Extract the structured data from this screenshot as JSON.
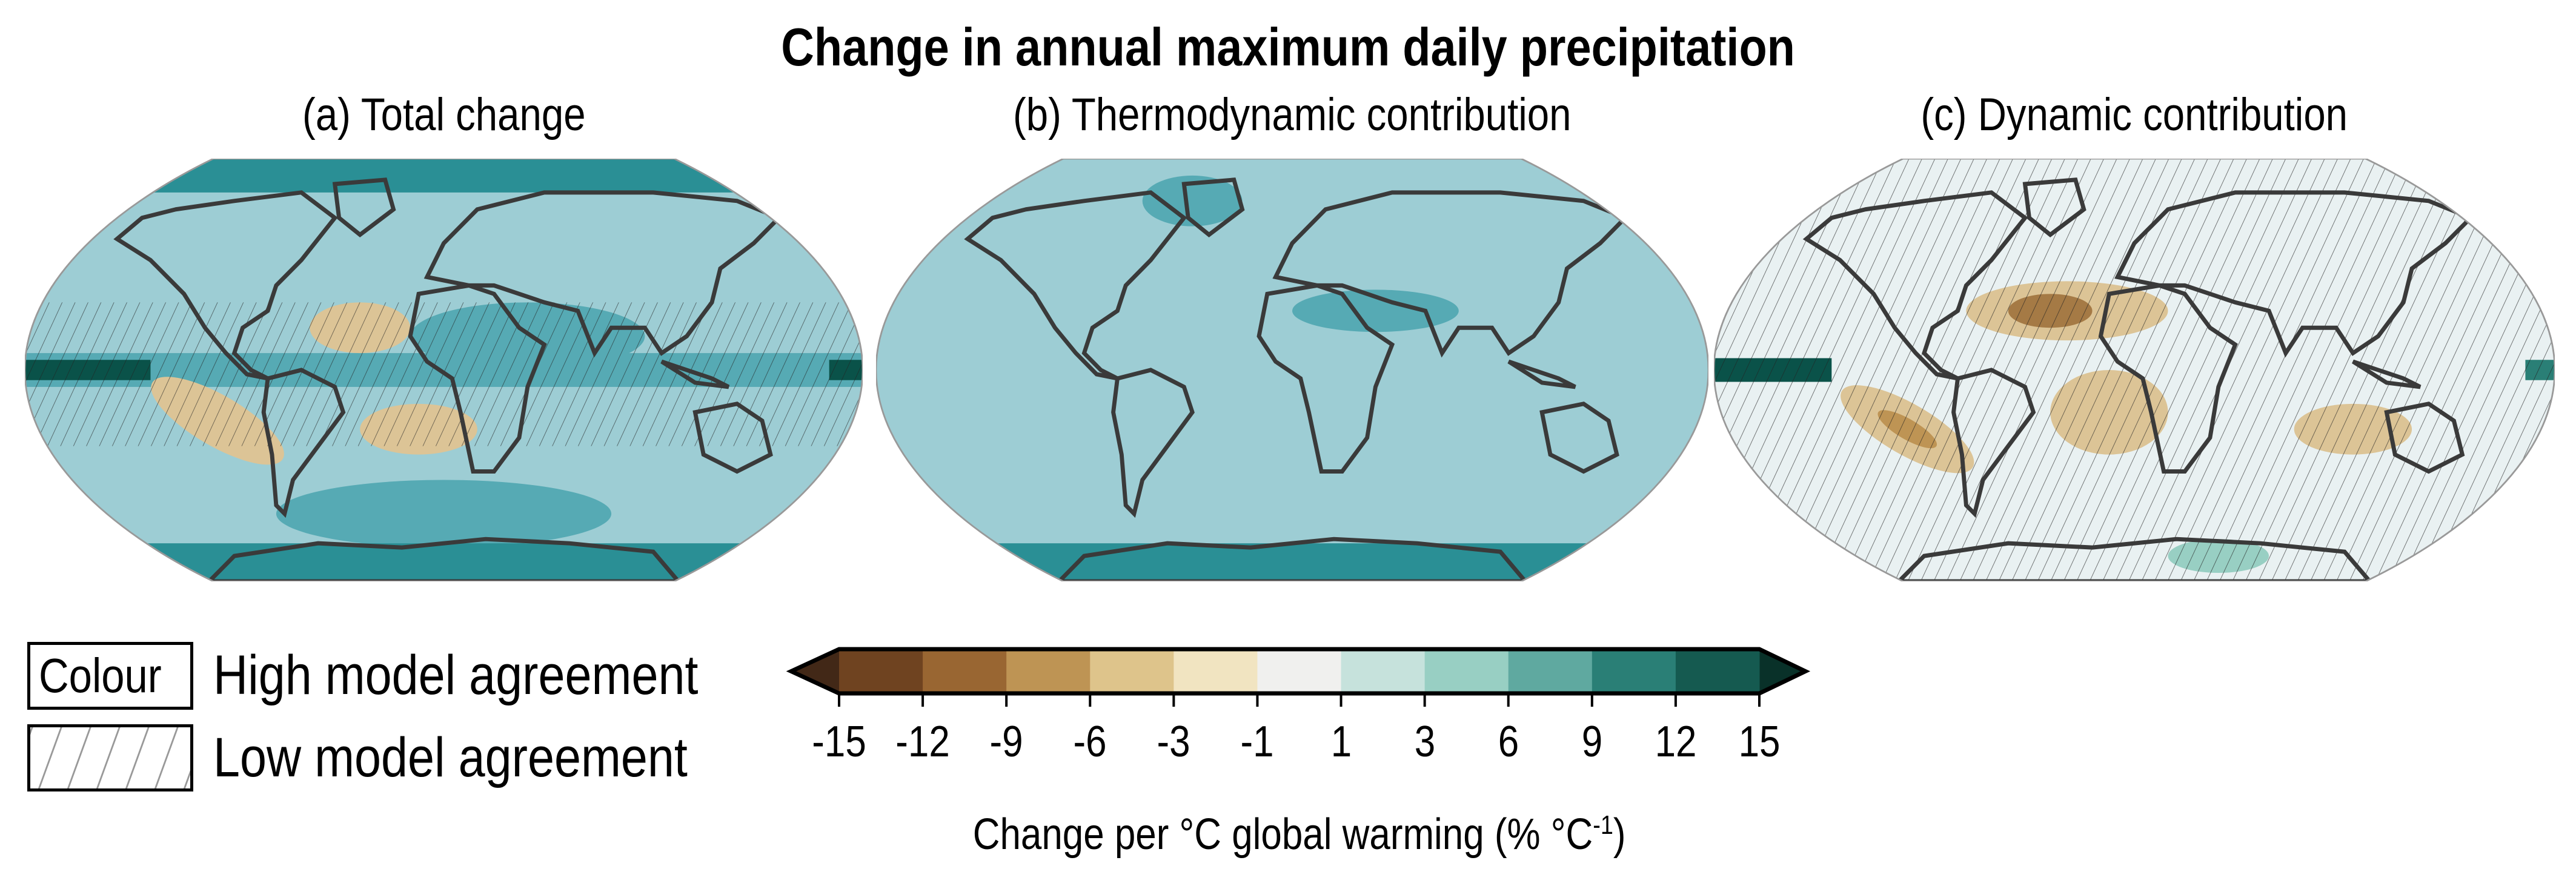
{
  "title": "Change in annual maximum daily precipitation",
  "panels": [
    {
      "label": "(a) Total change"
    },
    {
      "label": "(b) Thermodynamic contribution"
    },
    {
      "label": "(c) Dynamic contribution"
    }
  ],
  "legend": {
    "colour_box": "Colour",
    "high": "High model agreement",
    "low": "Low model agreement"
  },
  "colorbar": {
    "ticks": [
      "-15",
      "-12",
      "-9",
      "-6",
      "-3",
      "-1",
      "1",
      "3",
      "6",
      "9",
      "12",
      "15"
    ],
    "colors": [
      "#6f4320",
      "#996632",
      "#be9454",
      "#dec48b",
      "#f1e4c1",
      "#f0f0ee",
      "#c6e2dc",
      "#98cfc3",
      "#5fa9a0",
      "#2a7f76",
      "#155a50"
    ],
    "low_extend_color": "#422817",
    "high_extend_color": "#093129",
    "label_main": "Change per °C global warming (% °C",
    "label_sup": "-1",
    "label_end": ")"
  },
  "map_colors": {
    "base_a": "#9dcdd4",
    "base_b": "#9dcdd4",
    "base_c": "#e9f1f2",
    "mid_teal": "#56aab4",
    "dark_teal": "#0a5249",
    "tan": "#dcc496",
    "brown": "#a57a45",
    "coast": "#3a3a3a"
  }
}
